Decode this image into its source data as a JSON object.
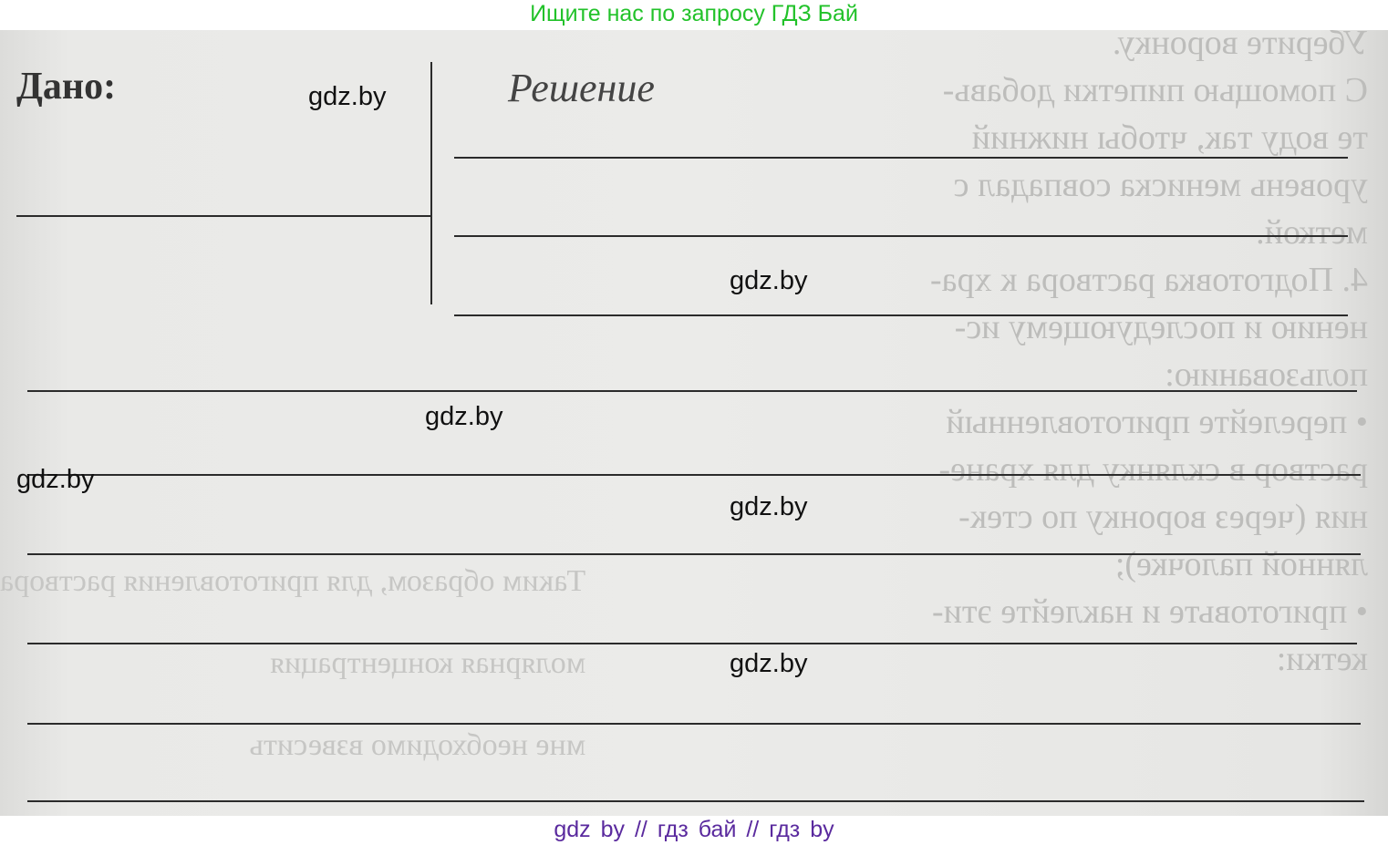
{
  "banner": {
    "text": "Ищите нас по запросу ГДЗ Бай",
    "color": "#22c22a"
  },
  "worksheet": {
    "given_label": "Дано:",
    "solution_label": "Решение",
    "bleed_through_right": [
      "Уберите воронку.",
      "С помощью пипетки добавь-",
      "те воду так, чтобы нижний",
      "уровень мениска совпадал с",
      "меткой.",
      "4. Подготовка раствора к хра-",
      "нению и последующему ис-",
      "пользованию:",
      "• перелейте приготовленный",
      "раствор в склянку для хране-",
      "ния (через воронку по стек-",
      "лянной палочке);",
      "• приготовьте и наклейте эти-",
      "кетки:"
    ],
    "bleed_through_left": [
      "Таким образом, для приготовления раствора",
      "молярная концентрация",
      "мне необходимо взвесить"
    ]
  },
  "watermarks": [
    "gdz.by",
    "gdz.by",
    "gdz.by",
    "gdz.by",
    "gdz.by",
    "gdz.by"
  ],
  "footer": {
    "text": "gdz by  //  гдз бай  //  гдз by",
    "color": "#5a2a9e"
  }
}
